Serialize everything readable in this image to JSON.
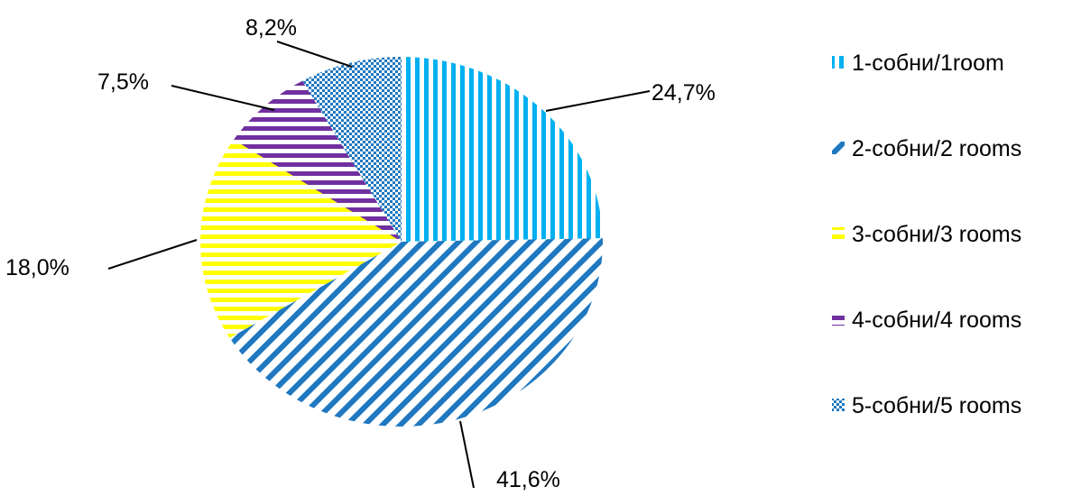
{
  "chart_data": {
    "type": "pie",
    "categories": [
      "1-собни/1room",
      "2-собни/2  rooms",
      "3-собни/3  rooms",
      "4-собни/4  rooms",
      "5-собни/5  rooms"
    ],
    "values": [
      24.7,
      41.6,
      18.0,
      7.5,
      8.2
    ],
    "data_labels": [
      "24,7%",
      "41,6%",
      "18,0%",
      "7,5%",
      "8,2%"
    ],
    "legend_position": "right",
    "series_colors": [
      "#00b0f0",
      "#1f78c0",
      "#ffff00",
      "#7030a0",
      "#1f78c0"
    ],
    "patterns": [
      "vertical-stripes",
      "diagonal-stripes",
      "horizontal-stripes",
      "horizontal-stripes",
      "checker"
    ]
  }
}
